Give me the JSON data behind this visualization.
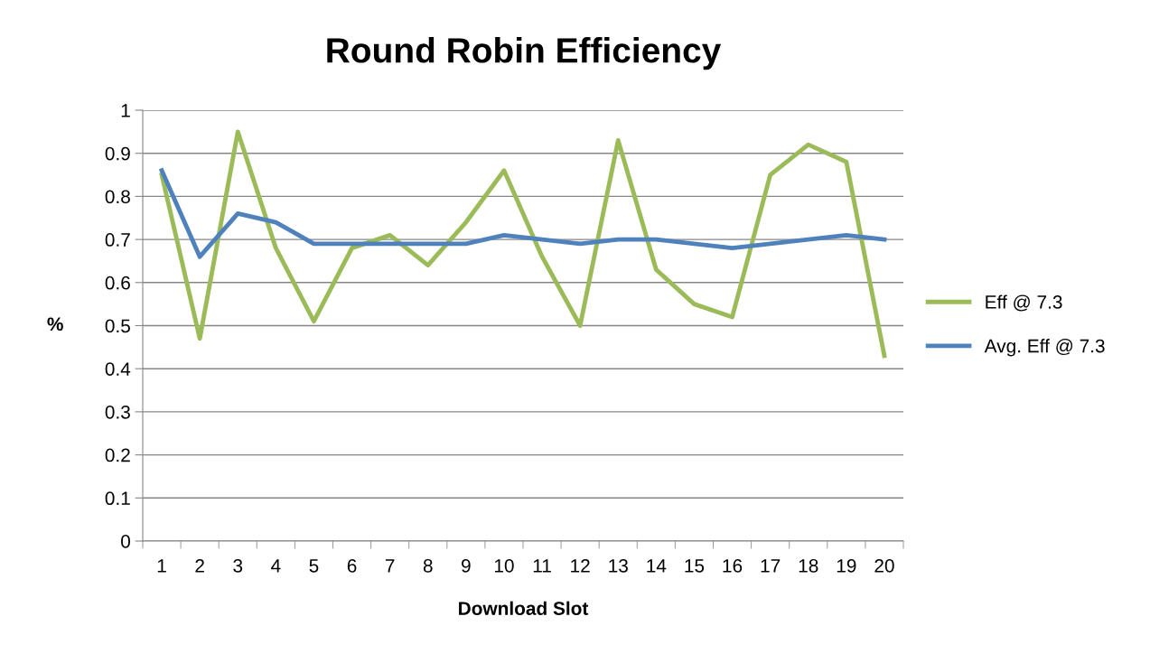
{
  "chart_data": {
    "type": "line",
    "title": "Round Robin Efficiency",
    "xlabel": "Download Slot",
    "ylabel": "%",
    "categories": [
      "1",
      "2",
      "3",
      "4",
      "5",
      "6",
      "7",
      "8",
      "9",
      "10",
      "11",
      "12",
      "13",
      "14",
      "15",
      "16",
      "17",
      "18",
      "19",
      "20"
    ],
    "series": [
      {
        "name": "Eff @ 7.3",
        "color": "#9bbb59",
        "values": [
          0.85,
          0.47,
          0.95,
          0.68,
          0.51,
          0.68,
          0.71,
          0.64,
          0.74,
          0.86,
          0.66,
          0.5,
          0.93,
          0.63,
          0.55,
          0.52,
          0.85,
          0.92,
          0.88,
          0.43
        ]
      },
      {
        "name": "Avg. Eff @ 7.3",
        "color": "#4f81bd",
        "values": [
          0.86,
          0.66,
          0.76,
          0.74,
          0.69,
          0.69,
          0.69,
          0.69,
          0.69,
          0.71,
          0.7,
          0.69,
          0.7,
          0.7,
          0.69,
          0.68,
          0.69,
          0.7,
          0.71,
          0.7
        ]
      }
    ],
    "ylim": [
      0,
      1
    ],
    "yticks": [
      0,
      0.1,
      0.2,
      0.3,
      0.4,
      0.5,
      0.6,
      0.7,
      0.8,
      0.9,
      1
    ],
    "grid": "y",
    "legend": "right",
    "marker": "none",
    "line_style": "solid"
  }
}
